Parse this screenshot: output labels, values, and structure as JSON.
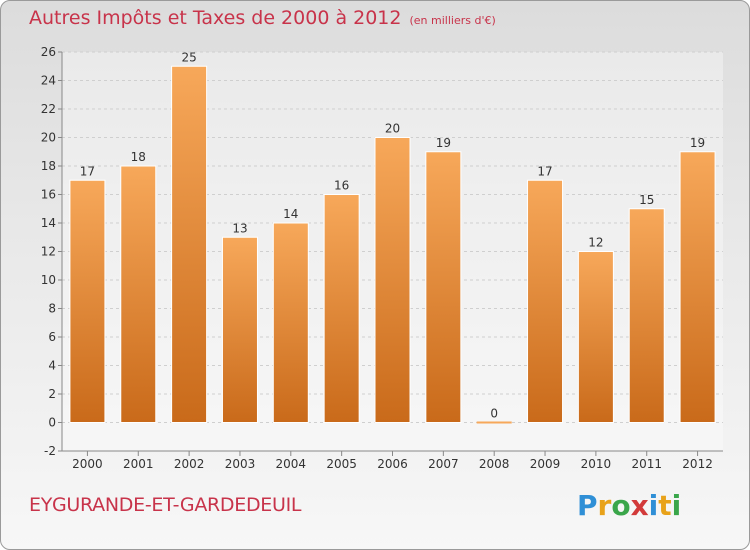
{
  "header": {
    "title": "Autres Impôts et Taxes de 2000 à 2012",
    "subtitle": "(en milliers d'€)"
  },
  "footer": {
    "region": "EYGURANDE-ET-GARDEDEUIL",
    "logo_letters": [
      "P",
      "r",
      "o",
      "x",
      "i",
      "t",
      "i"
    ],
    "logo_colors": [
      "#2f8fd6",
      "#e8a21a",
      "#3aa64a",
      "#d23a3a",
      "#2f8fd6",
      "#e8a21a",
      "#3aa64a"
    ]
  },
  "chart_data": {
    "type": "bar",
    "title": "Autres Impôts et Taxes de 2000 à 2012",
    "subtitle": "(en milliers d'€)",
    "categories": [
      "2000",
      "2001",
      "2002",
      "2003",
      "2004",
      "2005",
      "2006",
      "2007",
      "2008",
      "2009",
      "2010",
      "2011",
      "2012"
    ],
    "values": [
      17,
      18,
      25,
      13,
      14,
      16,
      20,
      19,
      0,
      17,
      12,
      15,
      19
    ],
    "data_labels": [
      "17",
      "18",
      "25",
      "13",
      "14",
      "16",
      "20",
      "19",
      "0",
      "17",
      "12",
      "15",
      "19"
    ],
    "ylim": [
      -2,
      26
    ],
    "yticks": [
      -2,
      0,
      2,
      4,
      6,
      8,
      10,
      12,
      14,
      16,
      18,
      20,
      22,
      24,
      26
    ],
    "ytick_labels": [
      "-2",
      "0",
      "2",
      "4",
      "6",
      "8",
      "10",
      "12",
      "14",
      "16",
      "18",
      "20",
      "22",
      "24",
      "26"
    ],
    "grid": true,
    "bar_color_top": "#f7a85a",
    "bar_color_bottom": "#c96a1a",
    "grid_color": "#cfcfcf",
    "axis_color": "#888888"
  }
}
